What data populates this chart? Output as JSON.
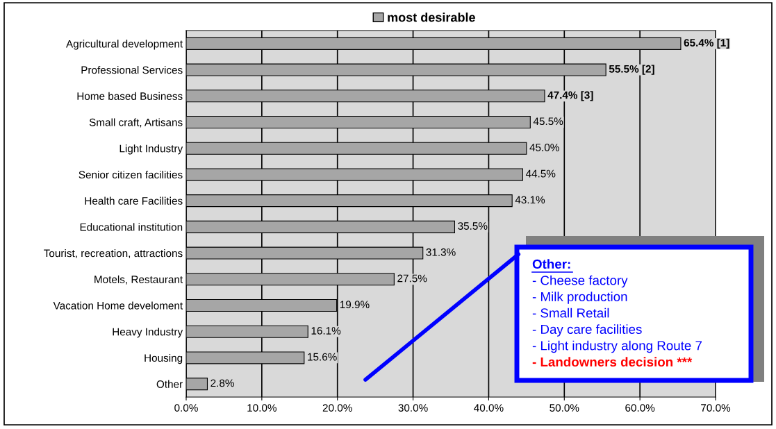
{
  "chart_data": {
    "type": "bar",
    "orientation": "horizontal",
    "categories": [
      "Agricultural development",
      "Professional Services",
      "Home based Business",
      "Small craft, Artisans",
      "Light Industry",
      "Senior citizen facilities",
      "Health care Facilities",
      "Educational institution",
      "Tourist, recreation, attractions",
      "Motels, Restaurant",
      "Vacation Home develoment",
      "Heavy Industry",
      "Housing",
      "Other"
    ],
    "series": [
      {
        "name": "most desirable",
        "color": "#a6a6a6",
        "values": [
          65.4,
          55.5,
          47.4,
          45.5,
          45.0,
          44.5,
          43.1,
          35.5,
          31.3,
          27.5,
          19.9,
          16.1,
          15.6,
          2.8
        ],
        "value_labels": [
          "65.4% [1]",
          "55.5% [2]",
          "47.4% [3]",
          "45.5%",
          "45.0%",
          "44.5%",
          "43.1%",
          "35.5%",
          "31.3%",
          "27.5%",
          "19.9%",
          "16.1%",
          "15.6%",
          "2.8%"
        ]
      }
    ],
    "xlim": [
      0,
      70
    ],
    "xticks": [
      {
        "value": 0,
        "label": "0.0%"
      },
      {
        "value": 10,
        "label": "10.0%"
      },
      {
        "value": 20,
        "label": "20.0%"
      },
      {
        "value": 30,
        "label": "30.0%"
      },
      {
        "value": 40,
        "label": "40.0%"
      },
      {
        "value": 50,
        "label": "50.0%"
      },
      {
        "value": 60,
        "label": "60.0%"
      },
      {
        "value": 70,
        "label": "70.0%"
      }
    ],
    "grid": "x",
    "legend": "top",
    "annotations": [
      "Other:",
      "- Cheese factory",
      "- Milk production",
      "- Small Retail",
      "- Day care facilities",
      "- Light industry along Route 7",
      "- Landowners decision ***"
    ]
  }
}
